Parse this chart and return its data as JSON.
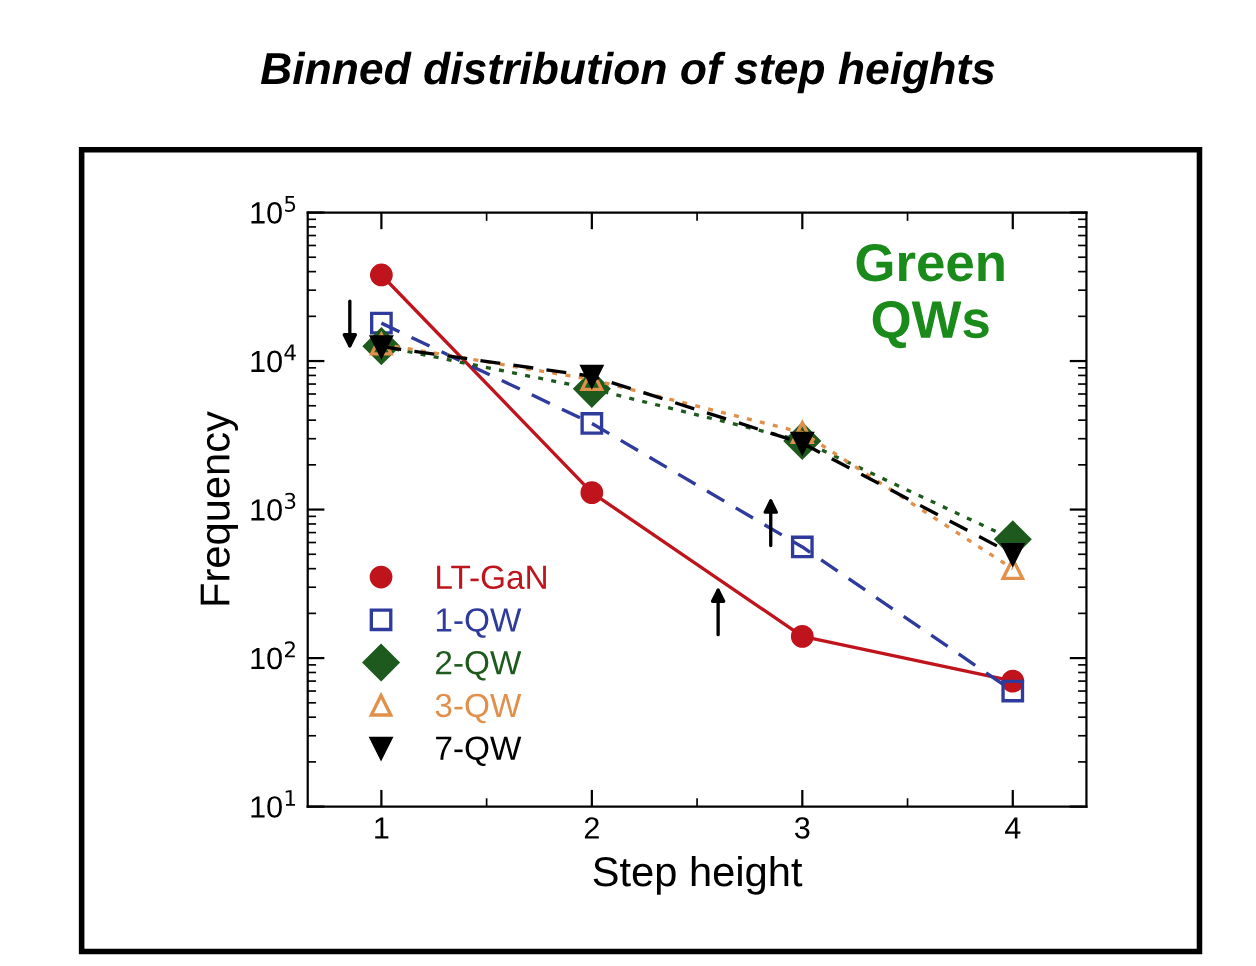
{
  "chart_data": {
    "type": "line",
    "title": "Binned distribution of step heights",
    "xlabel": "Step height",
    "ylabel": "Frequency",
    "x": [
      1,
      2,
      3,
      4
    ],
    "xlim": [
      0.65,
      4.35
    ],
    "xticks": [
      1,
      2,
      3,
      4
    ],
    "log": "y",
    "ylim": [
      10,
      100000
    ],
    "yticks": [
      {
        "value": 10,
        "label": "10$^{1}$"
      },
      {
        "value": 100,
        "label": "10$^{2}$"
      },
      {
        "value": 1000,
        "label": "10$^{3}$"
      },
      {
        "value": 10000,
        "label": "10$^{4}$"
      },
      {
        "value": 100000,
        "label": "10$^{5}$"
      }
    ],
    "legend": "bottom left",
    "grid": false,
    "annotations": [
      "Green\nQWs"
    ],
    "series": [
      {
        "name": "LT-GaN",
        "color": "#c0141c",
        "marker": "circle",
        "line_style": "solid",
        "values": [
          38000,
          1300,
          140,
          70
        ]
      },
      {
        "name": "1-QW",
        "color": "#2e3a9c",
        "marker": "square",
        "line_style": "dashed",
        "values": [
          18000,
          3800,
          560,
          60
        ]
      },
      {
        "name": "2-QW",
        "color": "#1e5a1e",
        "marker": "diamond",
        "line_style": "dotted",
        "values": [
          12600,
          6500,
          2900,
          630
        ]
      },
      {
        "name": "3-QW",
        "color": "#e0904a",
        "marker": "triangle",
        "line_style": "dotted",
        "values": [
          13000,
          7500,
          3300,
          400
        ]
      },
      {
        "name": "7-QW",
        "color": "#000000",
        "marker": "triangle-down",
        "line_style": "dashed",
        "values": [
          12500,
          7900,
          2800,
          500
        ]
      }
    ]
  }
}
